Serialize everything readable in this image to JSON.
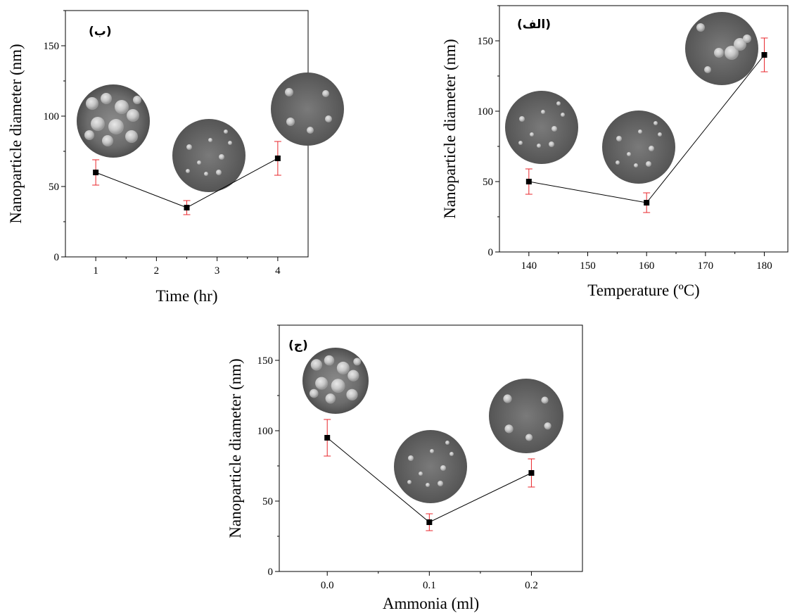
{
  "chart_data": [
    {
      "type": "scatter",
      "panel_label": "(ب)",
      "xlabel": "Time (hr)",
      "ylabel": "Nanoparticle diameter (nm)",
      "xlim": [
        0.5,
        4.5
      ],
      "ylim": [
        0,
        175
      ],
      "xticks": [
        1,
        2,
        3,
        4
      ],
      "yticks": [
        0,
        50,
        100,
        150
      ],
      "x": [
        1,
        2.5,
        4
      ],
      "y": [
        60,
        35,
        70
      ],
      "yerr": [
        9,
        5,
        12
      ],
      "connected": true,
      "marker_color": "#000000",
      "errorbar_color": "#e8262b",
      "inset_images": 3
    },
    {
      "type": "scatter",
      "panel_label": "(الف)",
      "xlabel": "Temperature (ºC)",
      "ylabel": "Nanoparticle diameter (nm)",
      "xlim": [
        135,
        184
      ],
      "ylim": [
        0,
        175
      ],
      "xticks": [
        140,
        150,
        160,
        170,
        180
      ],
      "yticks": [
        0,
        50,
        100,
        150
      ],
      "x": [
        140,
        160,
        180
      ],
      "y": [
        50,
        35,
        140
      ],
      "yerr": [
        9,
        7,
        12
      ],
      "connected": true,
      "marker_color": "#000000",
      "errorbar_color": "#e8262b",
      "inset_images": 3
    },
    {
      "type": "scatter",
      "panel_label": "(ج)",
      "xlabel": "Ammonia (ml)",
      "ylabel": "Nanoparticle diameter (nm)",
      "xlim": [
        -0.047,
        0.25
      ],
      "ylim": [
        0,
        175
      ],
      "xticks": [
        0.0,
        0.1,
        0.2
      ],
      "xtick_labels": [
        "0.0",
        "0.1",
        "0.2"
      ],
      "yticks": [
        0,
        50,
        100,
        150
      ],
      "x": [
        0.0,
        0.1,
        0.2
      ],
      "y": [
        95,
        35,
        70
      ],
      "yerr": [
        13,
        6,
        10
      ],
      "connected": true,
      "marker_color": "#000000",
      "errorbar_color": "#e8262b",
      "inset_images": 3
    }
  ]
}
